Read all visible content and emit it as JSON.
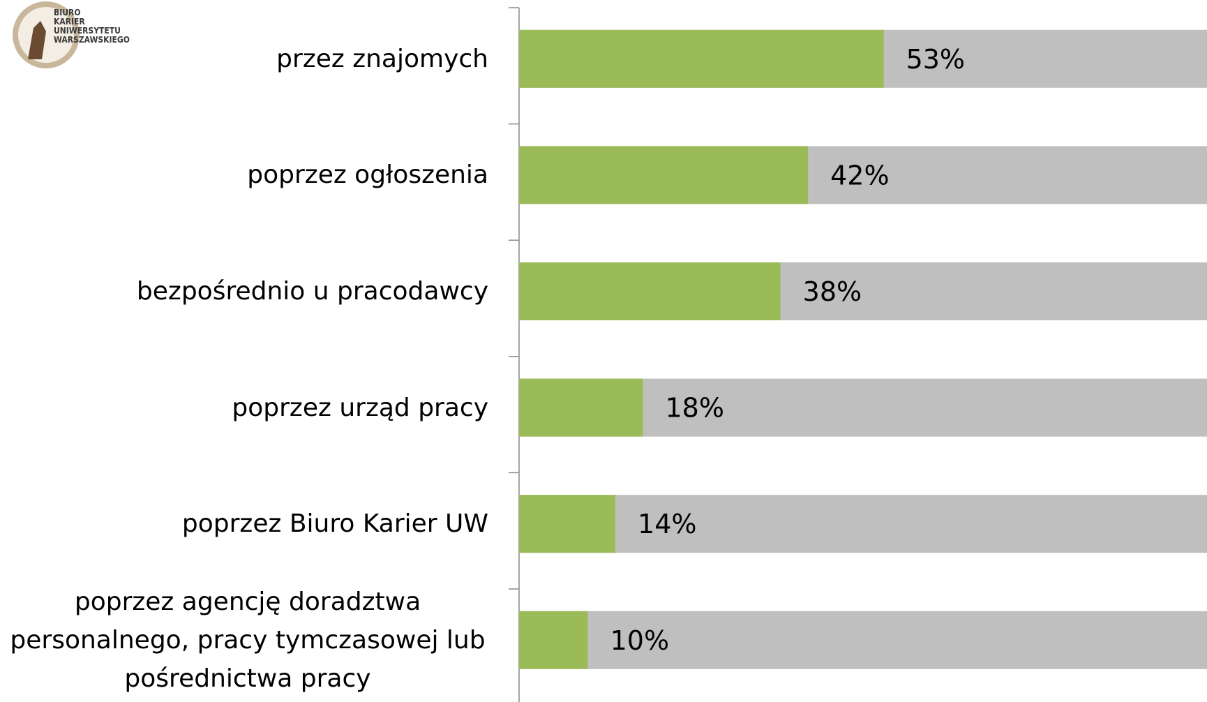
{
  "logo": {
    "lines": [
      "BIURO",
      "KARIER",
      "UNIWERSYTETU",
      "WARSZAWSKIEGO"
    ]
  },
  "chart_data": {
    "type": "hbar",
    "categories": [
      "przez znajomych",
      "poprzez ogłoszenia",
      "bezpośrednio u pracodawcy",
      "poprzez urząd pracy",
      "poprzez Biuro Karier UW",
      "poprzez agencję doradztwa personalnego, pracy tymczasowej lub pośrednictwa pracy"
    ],
    "values": [
      53,
      42,
      38,
      18,
      14,
      10
    ],
    "value_labels": [
      "53%",
      "42%",
      "38%",
      "18%",
      "14%",
      "10%"
    ],
    "color": "#9bbb59",
    "track_color": "#bfbfbf",
    "xlim": [
      0,
      100
    ]
  }
}
